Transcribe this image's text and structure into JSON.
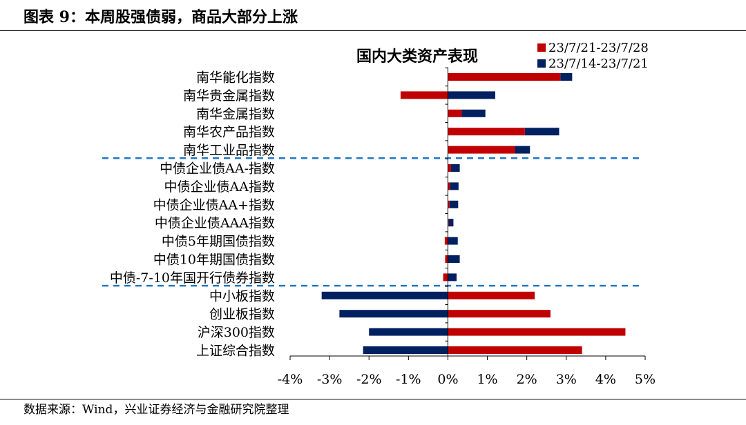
{
  "header": {
    "title": "图表 9：本周股强债弱，商品大部分上涨"
  },
  "footer": {
    "source": "数据来源：Wind，兴业证券经济与金融研究院整理"
  },
  "colors": {
    "series_current": "#c00000",
    "series_previous": "#002060",
    "divider": "#1f77c4",
    "axis": "#000000"
  },
  "chart_data": {
    "type": "bar",
    "orientation": "horizontal",
    "title": "国内大类资产表现",
    "categories": [
      "南华能化指数",
      "南华贵金属指数",
      "南华金属指数",
      "南华农产品指数",
      "南华工业品指数",
      "中债企业债AA-指数",
      "中债企业债AA指数",
      "中债企业债AA+指数",
      "中债企业债AAA指数",
      "中债5年期国债指数",
      "中债10年期国债指数",
      "中债-7-10年国开行债券指数",
      "中小板指数",
      "创业板指数",
      "沪深300指数",
      "上证综合指数"
    ],
    "series": [
      {
        "name": "23/7/21-23/7/28",
        "color": "#c00000",
        "values": [
          2.85,
          -1.2,
          0.35,
          1.95,
          1.7,
          0.08,
          0.05,
          0.04,
          0.02,
          -0.08,
          -0.07,
          -0.12,
          2.2,
          2.6,
          4.5,
          3.4
        ]
      },
      {
        "name": "23/7/14-23/7/21",
        "color": "#002060",
        "values": [
          3.15,
          1.2,
          0.95,
          2.82,
          2.08,
          0.3,
          0.27,
          0.26,
          0.14,
          0.25,
          0.3,
          0.22,
          -3.2,
          -2.75,
          -2.0,
          -2.15
        ]
      }
    ],
    "xlim": [
      -4,
      5
    ],
    "xticks": [
      -4,
      -3,
      -2,
      -1,
      0,
      1,
      2,
      3,
      4,
      5
    ],
    "xtick_labels": [
      "-4%",
      "-3%",
      "-2%",
      "-1%",
      "0%",
      "1%",
      "2%",
      "3%",
      "4%",
      "5%"
    ],
    "group_dividers_after": [
      4,
      11
    ],
    "legend_position": "top-right",
    "grid": false
  }
}
